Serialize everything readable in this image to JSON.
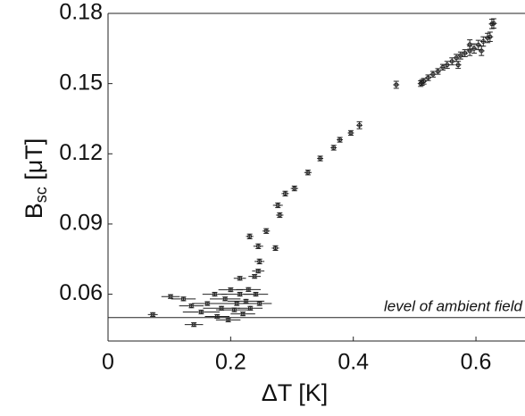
{
  "chart_data": {
    "type": "scatter",
    "xlabel": "ΔT [K]",
    "ylabel": [
      "B",
      "sc",
      " [μT]"
    ],
    "annotation": {
      "text": "level of ambient field",
      "y": 0.05
    },
    "xlim": [
      0,
      0.68
    ],
    "ylim": [
      0.04,
      0.18
    ],
    "xticks": [
      0,
      0.2,
      0.4,
      0.6
    ],
    "yticks": [
      0.06,
      0.09,
      0.12,
      0.15,
      0.18
    ],
    "color": "#222222",
    "x": [
      0.073,
      0.102,
      0.123,
      0.136,
      0.14,
      0.152,
      0.162,
      0.174,
      0.178,
      0.185,
      0.191,
      0.196,
      0.2,
      0.206,
      0.21,
      0.215,
      0.22,
      0.225,
      0.232,
      0.241,
      0.247,
      0.215,
      0.229,
      0.239,
      0.245,
      0.247,
      0.245,
      0.231,
      0.258,
      0.273,
      0.28,
      0.277,
      0.289,
      0.304,
      0.326,
      0.346,
      0.368,
      0.378,
      0.396,
      0.41,
      0.47,
      0.51,
      0.515,
      0.522,
      0.53,
      0.538,
      0.546,
      0.553,
      0.561,
      0.568,
      0.575,
      0.582,
      0.59,
      0.597,
      0.604,
      0.612,
      0.619,
      0.626,
      0.629,
      0.609,
      0.623,
      0.512,
      0.571,
      0.59
    ],
    "values": [
      0.0513,
      0.059,
      0.058,
      0.055,
      0.047,
      0.0524,
      0.056,
      0.06,
      0.0505,
      0.054,
      0.058,
      0.049,
      0.0619,
      0.0533,
      0.056,
      0.06,
      0.0516,
      0.057,
      0.054,
      0.06,
      0.056,
      0.0668,
      0.062,
      0.0676,
      0.0699,
      0.074,
      0.0805,
      0.0847,
      0.087,
      0.0797,
      0.0938,
      0.098,
      0.103,
      0.1052,
      0.112,
      0.118,
      0.1226,
      0.126,
      0.1289,
      0.1322,
      0.1495,
      0.15,
      0.151,
      0.1525,
      0.154,
      0.1552,
      0.157,
      0.158,
      0.1595,
      0.161,
      0.162,
      0.163,
      0.164,
      0.165,
      0.1665,
      0.168,
      0.1695,
      0.1755,
      0.1757,
      0.164,
      0.17,
      0.1505,
      0.158,
      0.1667
    ],
    "xerr": [
      0.008,
      0.015,
      0.02,
      0.02,
      0.015,
      0.03,
      0.025,
      0.02,
      0.02,
      0.03,
      0.025,
      0.02,
      0.02,
      0.03,
      0.04,
      0.03,
      0.02,
      0.03,
      0.02,
      0.02,
      0.02,
      0.01,
      0.02,
      0.01,
      0.01,
      0.008,
      0.008,
      0.006,
      0.006,
      0.006,
      0.006,
      0.008,
      0.006,
      0.006,
      0.006,
      0.005,
      0.005,
      0.005,
      0.005,
      0.005,
      0.005,
      0.005,
      0.005,
      0.005,
      0.005,
      0.005,
      0.005,
      0.005,
      0.005,
      0.005,
      0.005,
      0.005,
      0.005,
      0.005,
      0.005,
      0.005,
      0.005,
      0.005,
      0.005,
      0.005,
      0.005,
      0.005,
      0.005,
      0.005
    ],
    "yerr": [
      0.0008,
      0.0008,
      0.0008,
      0.0008,
      0.0008,
      0.0008,
      0.0008,
      0.0008,
      0.0008,
      0.0008,
      0.0008,
      0.0008,
      0.0008,
      0.0008,
      0.0008,
      0.0008,
      0.0008,
      0.0008,
      0.0008,
      0.0008,
      0.0008,
      0.0008,
      0.0008,
      0.0008,
      0.0008,
      0.001,
      0.001,
      0.001,
      0.001,
      0.001,
      0.001,
      0.001,
      0.001,
      0.001,
      0.001,
      0.001,
      0.001,
      0.001,
      0.001,
      0.0015,
      0.0015,
      0.0012,
      0.0012,
      0.0012,
      0.0012,
      0.0012,
      0.0012,
      0.0015,
      0.0015,
      0.0015,
      0.0015,
      0.0015,
      0.002,
      0.002,
      0.002,
      0.002,
      0.002,
      0.002,
      0.002,
      0.002,
      0.002,
      0.0012,
      0.0015,
      0.002
    ]
  }
}
